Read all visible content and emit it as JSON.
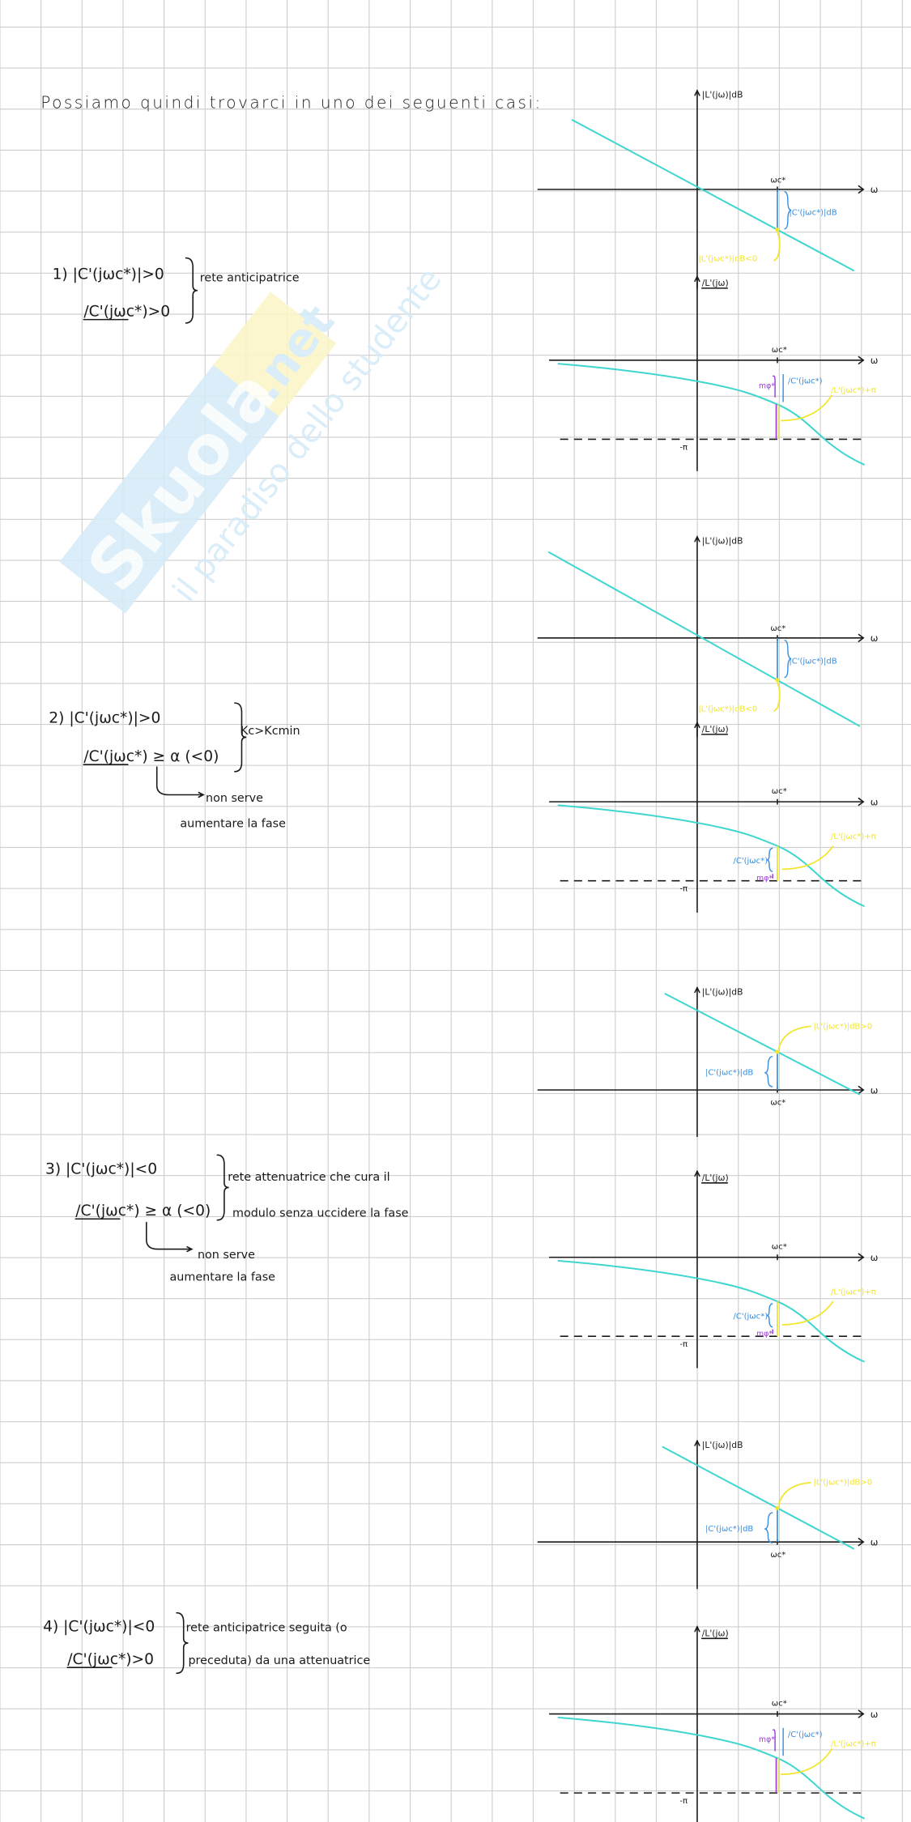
{
  "title": "Possiamo quindi trovarci in uno dei seguenti casi:",
  "colors": {
    "grid": "#cfcfcf",
    "ink": "#1a1a1a",
    "curve": "#3fd6cf",
    "blue_annotation": "#3a8fe0",
    "yellow_annotation": "#f2e62a",
    "purple_annotation": "#9b3fd6",
    "watermark_blue": "#d6ecf8",
    "watermark_yellow": "#fbf6c8"
  },
  "watermark": {
    "brand": "Skuola",
    "tld": ".net",
    "tagline": "il paradiso dello studente"
  },
  "cases": [
    {
      "line1": "1) |C'(jωc*)|>0",
      "line2": "/C'(jωc*)>0",
      "brace_text_1": "rete anticipatrice",
      "brace_text_2": ""
    },
    {
      "line1": "2) |C'(jωc*)|>0",
      "line2": "/C'(jωc*) ≥ α (<0)",
      "brace_text_1": "Kc>Kcmin",
      "brace_text_2": "",
      "note_1": "non serve",
      "note_2": "aumentare la fase"
    },
    {
      "line1": "3) |C'(jωc*)|<0",
      "line2": "/C'(jωc*) ≥ α (<0)",
      "brace_text_1": "rete attenuatrice che cura il",
      "brace_text_2": "modulo senza uccidere la fase",
      "note_1": "non serve",
      "note_2": "aumentare la fase"
    },
    {
      "line1": "4) |C'(jωc*)|<0",
      "line2": "/C'(jωc*)>0",
      "brace_text_1": "rete anticipatrice seguita (o",
      "brace_text_2": "preceduta) da una attenuatrice"
    }
  ],
  "plots": {
    "mag_axis_label": "|L'(jω)|dB",
    "phase_axis_label": "/L'(jω)",
    "omega": "ω",
    "omega_c": "ωc*",
    "minus_pi": "-π",
    "mag_C": "|C'(jωc*)|dB",
    "mag_L_neg": "|L'(jωc*)|dB<0",
    "mag_L_pos": "|L'(jωc*)|dB>0",
    "phase_C": "/C'(jωc*)",
    "phase_margin": "mφ*",
    "phase_L": "/L'(jωc*)+π"
  }
}
